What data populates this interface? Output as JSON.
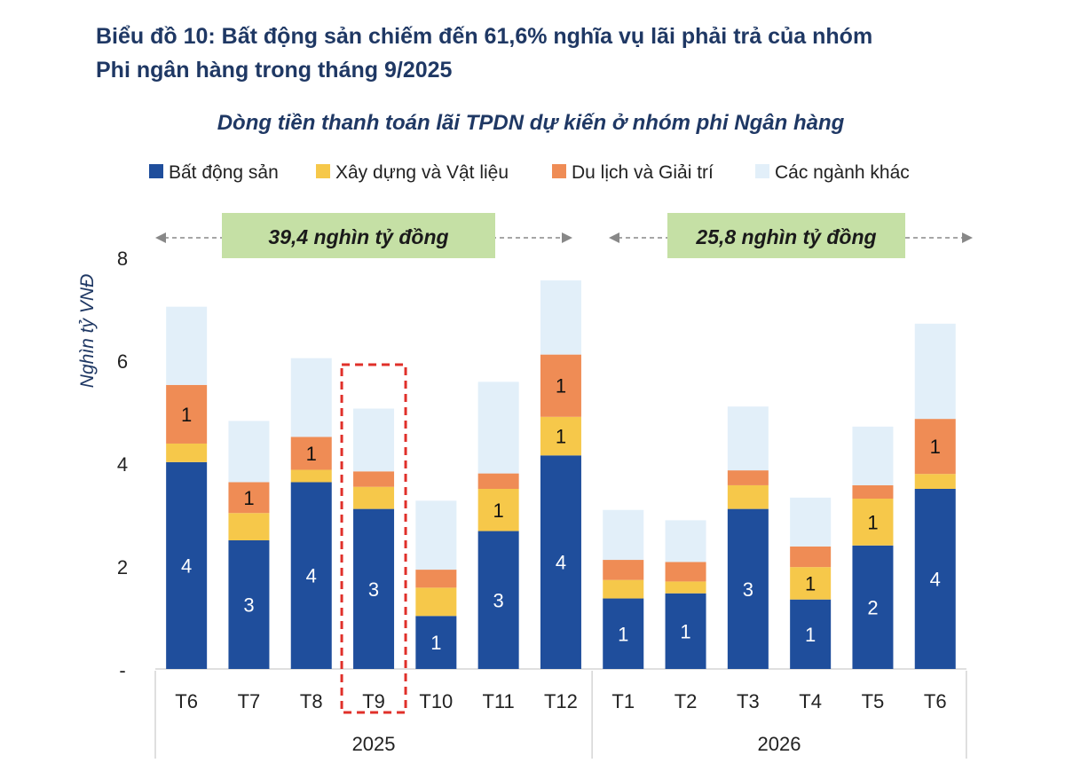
{
  "page": {
    "title_line1": "Biểu đồ 10: Bất động sản chiếm đến 61,6% nghĩa vụ lãi phải trả của nhóm",
    "title_line2": "Phi ngân hàng trong tháng 9/2025"
  },
  "colors": {
    "title": "#1f3864",
    "subtitle": "#1f3864",
    "text": "#222222",
    "arrow": "#888888",
    "callout_bg": "#c5e0a5",
    "highlight": "#e0302a"
  },
  "chart_data": {
    "type": "bar",
    "stacked": true,
    "title": "Dòng tiền thanh toán lãi TPDN dự kiến ở nhóm phi Ngân hàng",
    "ylabel": "Nghìn tỷ VNĐ",
    "xlabel": "",
    "ylim": [
      0,
      8
    ],
    "yticks": [
      {
        "value": 0,
        "label": "-"
      },
      {
        "value": 2,
        "label": "2"
      },
      {
        "value": 4,
        "label": "4"
      },
      {
        "value": 6,
        "label": "6"
      },
      {
        "value": 8,
        "label": "8"
      }
    ],
    "legend_position": "top",
    "categories": [
      "T6",
      "T7",
      "T8",
      "T9",
      "T10",
      "T11",
      "T12",
      "T1",
      "T2",
      "T3",
      "T4",
      "T5",
      "T6"
    ],
    "groups": [
      {
        "label": "2025",
        "start": 0,
        "end": 6
      },
      {
        "label": "2026",
        "start": 7,
        "end": 12
      }
    ],
    "highlight_index": 3,
    "series": [
      {
        "name": "Bất động sản",
        "color": "#1f4e9c",
        "values": [
          4.02,
          2.5,
          3.63,
          3.11,
          1.03,
          2.68,
          4.15,
          1.37,
          1.47,
          3.11,
          1.35,
          2.4,
          3.5
        ],
        "labels": [
          "4",
          "3",
          "4",
          "3",
          "1",
          "3",
          "4",
          "1",
          "1",
          "3",
          "1",
          "2",
          "4"
        ]
      },
      {
        "name": "Xây dựng và Vật liệu",
        "color": "#f6c84a",
        "values": [
          0.36,
          0.53,
          0.24,
          0.43,
          0.55,
          0.82,
          0.75,
          0.36,
          0.23,
          0.46,
          0.63,
          0.91,
          0.29
        ],
        "labels": [
          "",
          "",
          "",
          "",
          "",
          "1",
          "1",
          "",
          "",
          "",
          "1",
          "1",
          ""
        ]
      },
      {
        "name": "Du lịch và Giải trí",
        "color": "#ef8c55",
        "values": [
          1.14,
          0.6,
          0.64,
          0.3,
          0.35,
          0.3,
          1.21,
          0.39,
          0.38,
          0.29,
          0.4,
          0.26,
          1.07
        ],
        "labels": [
          "1",
          "1",
          "1",
          "",
          "",
          "",
          "1",
          "",
          "",
          "",
          "",
          "",
          "1"
        ]
      },
      {
        "name": "Các ngành khác",
        "color": "#e2eff9",
        "values": [
          1.52,
          1.19,
          1.53,
          1.22,
          1.34,
          1.78,
          1.44,
          0.97,
          0.81,
          1.24,
          0.95,
          1.14,
          1.85
        ],
        "labels": [
          "",
          "",
          "",
          "",
          "",
          "",
          "",
          "",
          "",
          "",
          "",
          "",
          ""
        ]
      }
    ],
    "annotations": [
      {
        "text": "39,4 nghìn tỷ đồng",
        "start": 0,
        "end": 6
      },
      {
        "text": "25,8 nghìn tỷ đồng",
        "start": 7,
        "end": 12
      }
    ]
  }
}
